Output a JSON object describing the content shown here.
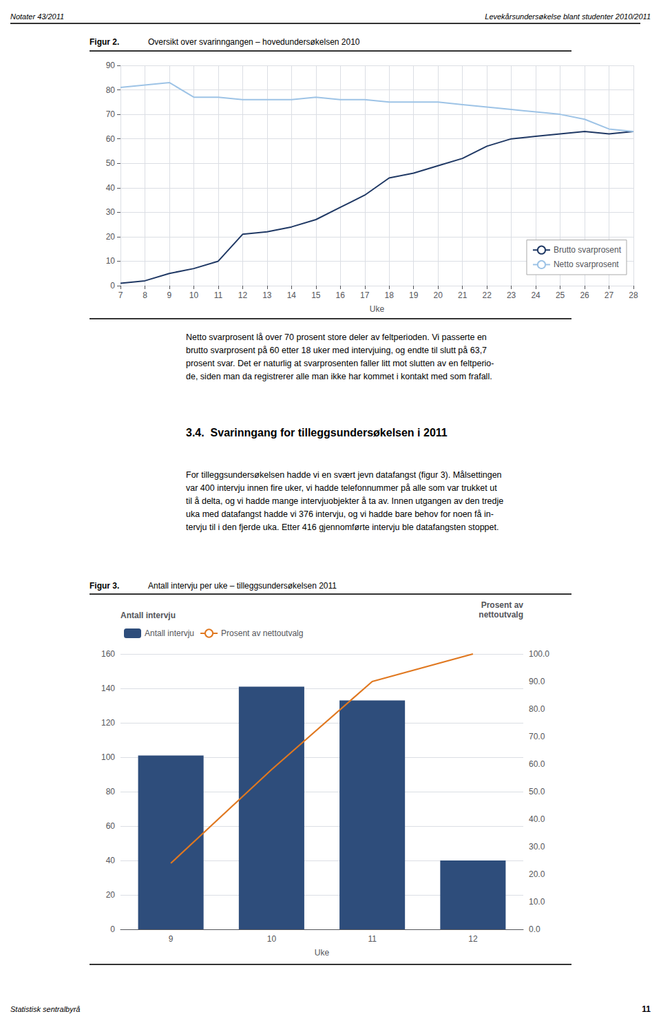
{
  "header_left": "Notater 43/2011",
  "header_right": "Levekårsundersøkelse blant studenter 2010/2011",
  "text_para1": "Netto svarprosent lå over 70 prosent store deler av feltperioden. Vi passerte en\nbrutto svarprosent på 60 etter 18 uker med intervjuing, og endte til slutt på 63,7\nprosent svar. Det er naturlig at svarprosenten faller litt mot slutten av en feltperio-\nde, siden man da registrerer alle man ikke har kommet i kontakt med som frafall.",
  "section_title": "3.4.  Svarinngang for tilleggsundersøkelsen i 2011",
  "section_text": "For tilleggsundersøkelsen hadde vi en svært jevn datafangst (figur 3). Målsettingen\nvar 400 intervju innen fire uker, vi hadde telefonnummer på alle som var trukket ut\ntil å delta, og vi hadde mange intervjuobjekter å ta av. Innen utgangen av den tredje\nuka med datafangst hadde vi 376 intervju, og vi hadde bare behov for noen få in-\ntervju til i den fjerde uka. Etter 416 gjennomførte intervju ble datafangsten stoppet.",
  "footer_left": "Statistisk sentralbyrå",
  "footer_right": "11",
  "chart_data": [
    {
      "type": "line",
      "title": "Figur 2.",
      "subtitle": "Oversikt over svarinngangen – hovedundersøkelsen 2010",
      "xlabel": "Uke",
      "x": [
        7,
        8,
        9,
        10,
        11,
        12,
        13,
        14,
        15,
        16,
        17,
        18,
        19,
        20,
        21,
        22,
        23,
        24,
        25,
        26,
        27,
        28
      ],
      "series": [
        {
          "name": "Brutto svarprosent",
          "color": "#1F3864",
          "values": [
            1,
            2,
            5,
            7,
            10,
            21,
            22,
            24,
            27,
            32,
            37,
            44,
            46,
            49,
            52,
            57,
            60,
            61,
            62,
            63,
            62,
            63
          ]
        },
        {
          "name": "Netto svarprosent",
          "color": "#9DC3E6",
          "values": [
            81,
            82,
            83,
            77,
            77,
            76,
            76,
            76,
            77,
            76,
            76,
            75,
            75,
            75,
            74,
            73,
            72,
            71,
            70,
            68,
            64,
            63
          ]
        }
      ],
      "xlim": [
        7,
        28
      ],
      "xticks": [
        7,
        8,
        9,
        10,
        11,
        12,
        13,
        14,
        15,
        16,
        17,
        18,
        19,
        20,
        21,
        22,
        23,
        24,
        25,
        26,
        27,
        28
      ],
      "ylim": [
        0,
        90
      ],
      "yticks": [
        0,
        10,
        20,
        30,
        40,
        50,
        60,
        70,
        80,
        90
      ],
      "grid": true,
      "legend": "lower right"
    },
    {
      "type": "bar",
      "title": "Figur 3.",
      "subtitle": "Antall intervju per uke – tilleggsundersøkelsen 2011",
      "xlabel": "Uke",
      "ylabel": "Antall intervju",
      "y2label": "Prosent av\nnettoutvalg",
      "categories": [
        "9",
        "10",
        "11",
        "12"
      ],
      "series": [
        {
          "name": "Antall intervju",
          "type": "bar",
          "color": "#2E4D7B",
          "values": [
            101,
            141,
            133,
            40
          ]
        },
        {
          "name": "Prosent av nettoutvalg",
          "type": "line",
          "color": "#E07820",
          "axis": "y2",
          "values": [
            24.0,
            58.0,
            90.0,
            100.0
          ]
        }
      ],
      "ylim": [
        0,
        160
      ],
      "yticks": [
        0,
        20,
        40,
        60,
        80,
        100,
        120,
        140,
        160
      ],
      "y2lim": [
        0,
        100
      ],
      "y2ticks": [
        {
          "value": 0,
          "label": "0.0"
        },
        {
          "value": 10,
          "label": "10.0"
        },
        {
          "value": 20,
          "label": "20.0"
        },
        {
          "value": 30,
          "label": "30.0"
        },
        {
          "value": 40,
          "label": "40.0"
        },
        {
          "value": 50,
          "label": "50.0"
        },
        {
          "value": 60,
          "label": "60.0"
        },
        {
          "value": 70,
          "label": "70.0"
        },
        {
          "value": 80,
          "label": "80.0"
        },
        {
          "value": 90,
          "label": "90.0"
        },
        {
          "value": 100,
          "label": "100.0"
        }
      ],
      "grid": "y",
      "legend": "upper left"
    }
  ]
}
